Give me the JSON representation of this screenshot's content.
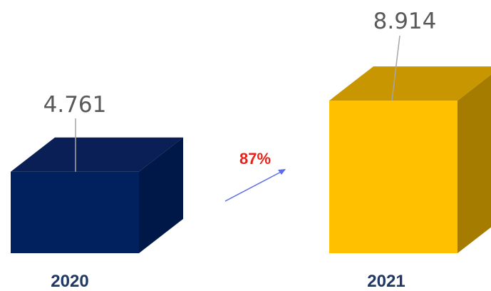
{
  "chart_data": {
    "type": "bar",
    "categories": [
      "2020",
      "2021"
    ],
    "values": [
      4.761,
      8.914
    ],
    "value_labels": [
      "4.761",
      "8.914"
    ],
    "growth_label": "87%",
    "ylim": [
      0,
      10
    ],
    "grid": false,
    "legend": "none",
    "colors": {
      "bar_2020_front": "#00215E",
      "bar_2020_top": "#0A1F55",
      "bar_2020_side": "#001848",
      "bar_2021_front": "#FFC000",
      "bar_2021_top": "#C89600",
      "bar_2021_side": "#A67C00",
      "growth_text": "#E8221B",
      "arrow": "#5B6CE8",
      "label_text": "#595959",
      "leader": "#A6A6A6",
      "category_text": "#1F3864"
    }
  }
}
